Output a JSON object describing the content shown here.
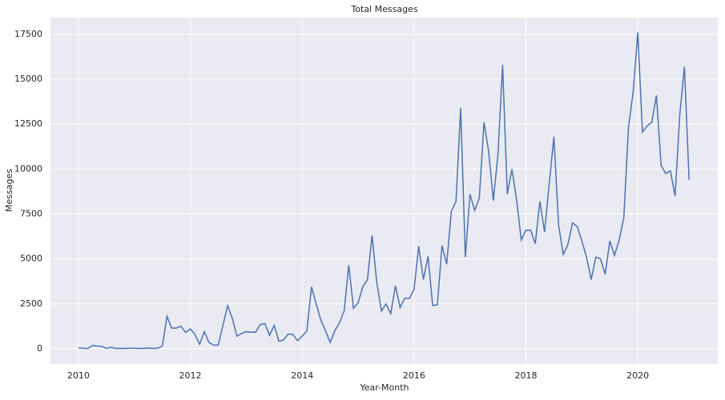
{
  "chart_data": {
    "type": "line",
    "title": "Total Messages",
    "x_label": "Year-Month",
    "y_label": "Messages",
    "x": [
      2010.0,
      2010.083,
      2010.167,
      2010.25,
      2010.333,
      2010.417,
      2010.5,
      2010.583,
      2010.667,
      2010.75,
      2010.833,
      2010.917,
      2011.0,
      2011.083,
      2011.167,
      2011.25,
      2011.333,
      2011.417,
      2011.5,
      2011.583,
      2011.667,
      2011.75,
      2011.833,
      2011.917,
      2012.0,
      2012.083,
      2012.167,
      2012.25,
      2012.333,
      2012.417,
      2012.5,
      2012.583,
      2012.667,
      2012.75,
      2012.833,
      2012.917,
      2013.0,
      2013.083,
      2013.167,
      2013.25,
      2013.333,
      2013.417,
      2013.5,
      2013.583,
      2013.667,
      2013.75,
      2013.833,
      2013.917,
      2014.0,
      2014.083,
      2014.167,
      2014.25,
      2014.333,
      2014.417,
      2014.5,
      2014.583,
      2014.667,
      2014.75,
      2014.833,
      2014.917,
      2015.0,
      2015.083,
      2015.167,
      2015.25,
      2015.333,
      2015.417,
      2015.5,
      2015.583,
      2015.667,
      2015.75,
      2015.833,
      2015.917,
      2016.0,
      2016.083,
      2016.167,
      2016.25,
      2016.333,
      2016.417,
      2016.5,
      2016.583,
      2016.667,
      2016.75,
      2016.833,
      2016.917,
      2017.0,
      2017.083,
      2017.167,
      2017.25,
      2017.333,
      2017.417,
      2017.5,
      2017.583,
      2017.667,
      2017.75,
      2017.833,
      2017.917,
      2018.0,
      2018.083,
      2018.167,
      2018.25,
      2018.333,
      2018.417,
      2018.5,
      2018.583,
      2018.667,
      2018.75,
      2018.833,
      2018.917,
      2019.0,
      2019.083,
      2019.167,
      2019.25,
      2019.333,
      2019.417,
      2019.5,
      2019.583,
      2019.667,
      2019.75,
      2019.833,
      2019.917,
      2020.0,
      2020.083,
      2020.167,
      2020.25,
      2020.333,
      2020.417,
      2020.5,
      2020.583,
      2020.667,
      2020.75,
      2020.833,
      2020.917
    ],
    "series": [
      {
        "name": "Messages",
        "color": "#4c72b0",
        "values": [
          50,
          30,
          10,
          180,
          150,
          130,
          20,
          80,
          20,
          20,
          20,
          30,
          30,
          20,
          20,
          40,
          20,
          30,
          150,
          1800,
          1150,
          1150,
          1250,
          900,
          1100,
          800,
          250,
          950,
          350,
          200,
          200,
          1300,
          2400,
          1700,
          700,
          850,
          950,
          920,
          920,
          1350,
          1400,
          750,
          1300,
          420,
          480,
          820,
          800,
          450,
          700,
          980,
          3450,
          2500,
          1600,
          1000,
          350,
          1000,
          1450,
          2100,
          4650,
          2250,
          2550,
          3450,
          3850,
          6300,
          3700,
          2100,
          2500,
          1950,
          3500,
          2300,
          2800,
          2800,
          3300,
          5700,
          3850,
          5150,
          2400,
          2450,
          5750,
          4700,
          7650,
          8200,
          13400,
          5100,
          8600,
          7700,
          8400,
          12600,
          11000,
          8250,
          10800,
          15800,
          8600,
          10000,
          8300,
          6050,
          6600,
          6600,
          5850,
          8200,
          6500,
          9200,
          11800,
          6900,
          5250,
          5800,
          7000,
          6800,
          6000,
          5100,
          3850,
          5100,
          5000,
          4150,
          6000,
          5200,
          6050,
          7300,
          12300,
          14300,
          17600,
          12050,
          12400,
          12600,
          14100,
          10200,
          9750,
          9900,
          8500,
          13000,
          15700,
          9400
        ]
      }
    ],
    "xlim": [
      2009.5,
      2021.43
    ],
    "xticks": [
      2010,
      2012,
      2014,
      2016,
      2018,
      2020
    ],
    "ylim": [
      -850,
      18430
    ],
    "yticks": [
      0,
      2500,
      5000,
      7500,
      10000,
      12500,
      15000,
      17500
    ],
    "grid": true
  }
}
